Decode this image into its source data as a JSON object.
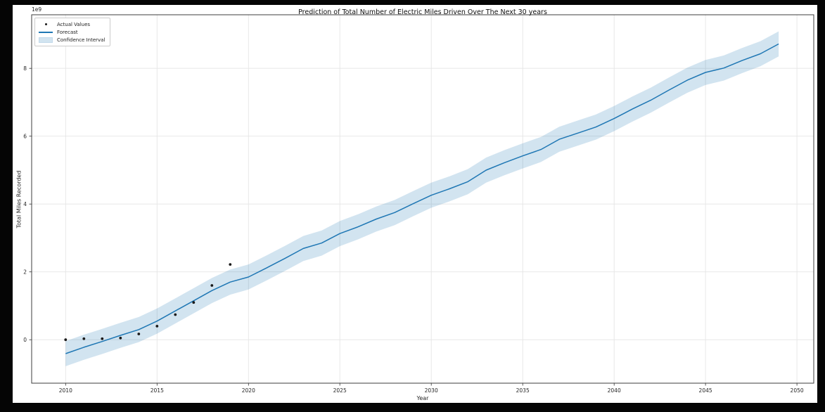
{
  "window": {
    "background": "#050505",
    "figure_background": "#ffffff"
  },
  "chart_data": {
    "type": "line",
    "title": "Prediction of Total Number of Electric Miles Driven Over The Next 30 years",
    "xlabel": "Year",
    "ylabel": "Total Miles Recorded",
    "offset_text": "1e9",
    "value_scale": 1000000000,
    "xlim": [
      2008.14,
      2050.92
    ],
    "ylim": [
      -1.28,
      9.58
    ],
    "xticks": [
      2010,
      2015,
      2020,
      2025,
      2030,
      2035,
      2040,
      2045,
      2050
    ],
    "yticks": [
      0,
      2,
      4,
      6,
      8
    ],
    "grid": true,
    "colors": {
      "forecast_line": "#1f77b4",
      "confidence_band": "#1f77b4",
      "confidence_band_opacity": 0.2,
      "actual_points": "#1a1a1a",
      "gridline": "#e5e5e5",
      "spine": "#3c3c3c",
      "tick": "#333333"
    },
    "legend": {
      "position": "upper-left",
      "entries": [
        {
          "label": "Actual Values",
          "swatch": "point"
        },
        {
          "label": "Forecast",
          "swatch": "line"
        },
        {
          "label": "Confidence Interval",
          "swatch": "patch"
        }
      ]
    },
    "series": [
      {
        "name": "Actual Values",
        "type": "scatter",
        "x": [
          2010,
          2011,
          2012,
          2013,
          2014,
          2015,
          2016,
          2017,
          2018,
          2019
        ],
        "y": [
          0.0,
          0.03,
          0.03,
          0.05,
          0.17,
          0.4,
          0.74,
          1.1,
          1.6,
          2.22
        ]
      },
      {
        "name": "Forecast",
        "type": "line",
        "x": [
          2010,
          2011,
          2012,
          2013,
          2014,
          2015,
          2016,
          2017,
          2018,
          2019,
          2020,
          2021,
          2022,
          2023,
          2024,
          2025,
          2026,
          2027,
          2028,
          2029,
          2030,
          2031,
          2032,
          2033,
          2034,
          2035,
          2036,
          2037,
          2038,
          2039,
          2040,
          2041,
          2042,
          2043,
          2044,
          2045,
          2046,
          2047,
          2048,
          2049
        ],
        "y": [
          -0.41,
          -0.22,
          -0.05,
          0.13,
          0.3,
          0.55,
          0.85,
          1.15,
          1.45,
          1.7,
          1.85,
          2.12,
          2.4,
          2.69,
          2.85,
          3.13,
          3.33,
          3.56,
          3.75,
          4.01,
          4.26,
          4.45,
          4.66,
          5.0,
          5.22,
          5.42,
          5.61,
          5.91,
          6.09,
          6.27,
          6.52,
          6.8,
          7.06,
          7.36,
          7.65,
          7.88,
          8.01,
          8.23,
          8.43,
          8.72
        ]
      },
      {
        "name": "Confidence Interval",
        "type": "band",
        "follows": "Forecast",
        "halfwidth": 0.37
      }
    ]
  }
}
